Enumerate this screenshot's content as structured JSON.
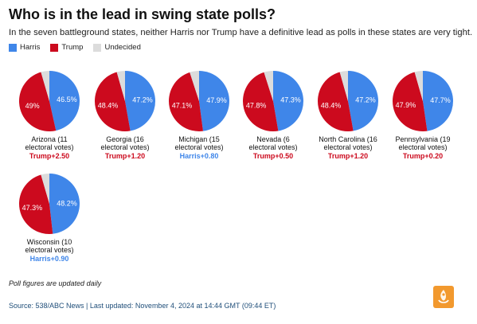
{
  "title": "Who is in the lead in swing state polls?",
  "subtitle": "In the seven battleground states, neither Harris nor Trump have a definitive lead as polls in these states are very tight.",
  "legend": [
    {
      "label": "Harris",
      "color": "#3f86e9"
    },
    {
      "label": "Trump",
      "color": "#cc0a1e"
    },
    {
      "label": "Undecided",
      "color": "#dcdcdc"
    }
  ],
  "colors": {
    "harris": "#3f86e9",
    "trump": "#cc0a1e",
    "undecided": "#dcdcdc"
  },
  "chart_data": {
    "type": "pie",
    "series_names": [
      "Harris",
      "Trump",
      "Undecided"
    ],
    "states": [
      {
        "name_line1": "Arizona (11",
        "name_line2": "electoral votes)",
        "harris": 46.5,
        "trump": 49.0,
        "harris_label": "46.5%",
        "trump_label": "49%",
        "lead": "Trump+2.50",
        "leader": "trump"
      },
      {
        "name_line1": "Georgia (16",
        "name_line2": "electoral votes)",
        "harris": 47.2,
        "trump": 48.4,
        "harris_label": "47.2%",
        "trump_label": "48.4%",
        "lead": "Trump+1.20",
        "leader": "trump"
      },
      {
        "name_line1": "Michigan (15",
        "name_line2": "electoral votes)",
        "harris": 47.9,
        "trump": 47.1,
        "harris_label": "47.9%",
        "trump_label": "47.1%",
        "lead": "Harris+0.80",
        "leader": "harris"
      },
      {
        "name_line1": "Nevada (6",
        "name_line2": "electoral votes)",
        "harris": 47.3,
        "trump": 47.8,
        "harris_label": "47.3%",
        "trump_label": "47.8%",
        "lead": "Trump+0.50",
        "leader": "trump"
      },
      {
        "name_line1": "North Carolina (16",
        "name_line2": "electoral votes)",
        "harris": 47.2,
        "trump": 48.4,
        "harris_label": "47.2%",
        "trump_label": "48.4%",
        "lead": "Trump+1.20",
        "leader": "trump"
      },
      {
        "name_line1": "Pennsylvania (19",
        "name_line2": "electoral votes)",
        "harris": 47.7,
        "trump": 47.9,
        "harris_label": "47.7%",
        "trump_label": "47.9%",
        "lead": "Trump+0.20",
        "leader": "trump"
      },
      {
        "name_line1": "Wisconsin (10",
        "name_line2": "electoral votes)",
        "harris": 48.2,
        "trump": 47.3,
        "harris_label": "48.2%",
        "trump_label": "47.3%",
        "lead": "Harris+0.90",
        "leader": "harris"
      }
    ]
  },
  "footnote": "Poll figures are updated daily",
  "source": "Source: 538/ABC News | Last updated: November 4, 2024 at 14:44 GMT (09:44 ET)"
}
